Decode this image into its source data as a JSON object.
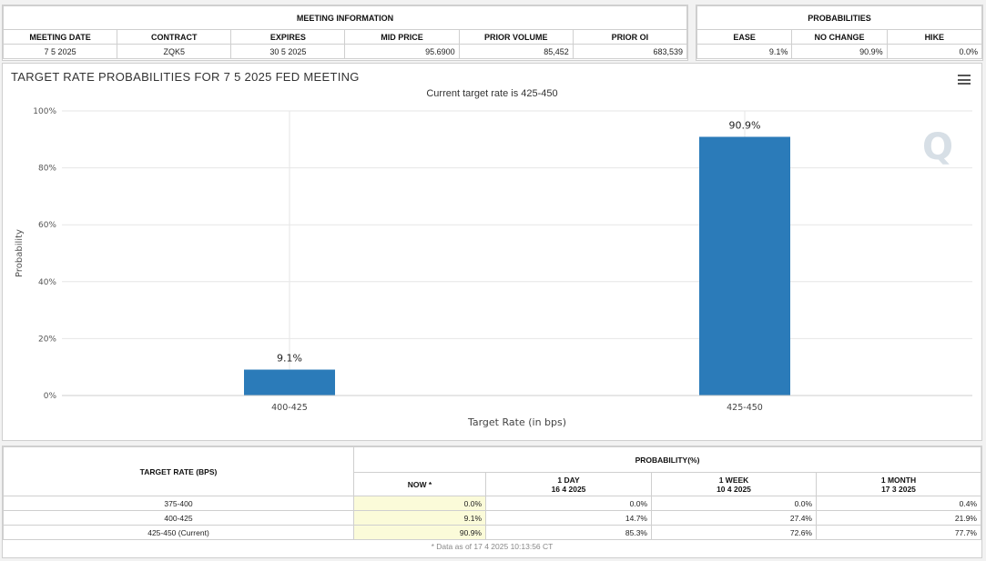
{
  "meeting_info": {
    "title": "MEETING INFORMATION",
    "columns": [
      "MEETING DATE",
      "CONTRACT",
      "EXPIRES",
      "MID PRICE",
      "PRIOR VOLUME",
      "PRIOR OI"
    ],
    "values": [
      "7 5 2025",
      "ZQK5",
      "30 5 2025",
      "95.6900",
      "85,452",
      "683,539"
    ]
  },
  "probabilities": {
    "title": "PROBABILITIES",
    "columns": [
      "EASE",
      "NO CHANGE",
      "HIKE"
    ],
    "values": [
      "9.1%",
      "90.9%",
      "0.0%"
    ]
  },
  "chart": {
    "title": "TARGET RATE PROBABILITIES FOR 7 5 2025 FED MEETING",
    "subtitle": "Current target rate is 425-450",
    "watermark": "Q",
    "menu_icon": "hamburger-menu-icon",
    "bar_color": "#2b7bb9"
  },
  "chart_data": {
    "type": "bar",
    "title": "TARGET RATE PROBABILITIES FOR 7 5 2025 FED MEETING",
    "subtitle": "Current target rate is 425-450",
    "categories": [
      "400-425",
      "425-450"
    ],
    "values": [
      9.1,
      90.9
    ],
    "data_labels": [
      "9.1%",
      "90.9%"
    ],
    "xlabel": "Target Rate (in bps)",
    "ylabel": "Probability",
    "ylim": [
      0,
      100
    ],
    "yticks": [
      0,
      20,
      40,
      60,
      80,
      100
    ],
    "ytick_labels": [
      "0%",
      "20%",
      "40%",
      "60%",
      "80%",
      "100%"
    ],
    "grid": true
  },
  "prob_table": {
    "header_left": "TARGET RATE (BPS)",
    "header_group": "PROBABILITY(%)",
    "columns": [
      {
        "label": "NOW *",
        "date": ""
      },
      {
        "label": "1 DAY",
        "date": "16 4 2025"
      },
      {
        "label": "1 WEEK",
        "date": "10 4 2025"
      },
      {
        "label": "1 MONTH",
        "date": "17 3 2025"
      }
    ],
    "rows": [
      {
        "rate": "375-400",
        "values": [
          "0.0%",
          "0.0%",
          "0.0%",
          "0.4%"
        ]
      },
      {
        "rate": "400-425",
        "values": [
          "9.1%",
          "14.7%",
          "27.4%",
          "21.9%"
        ]
      },
      {
        "rate": "425-450 (Current)",
        "values": [
          "90.9%",
          "85.3%",
          "72.6%",
          "77.7%"
        ]
      }
    ],
    "footnote": "* Data as of 17 4 2025 10:13:56 CT"
  }
}
